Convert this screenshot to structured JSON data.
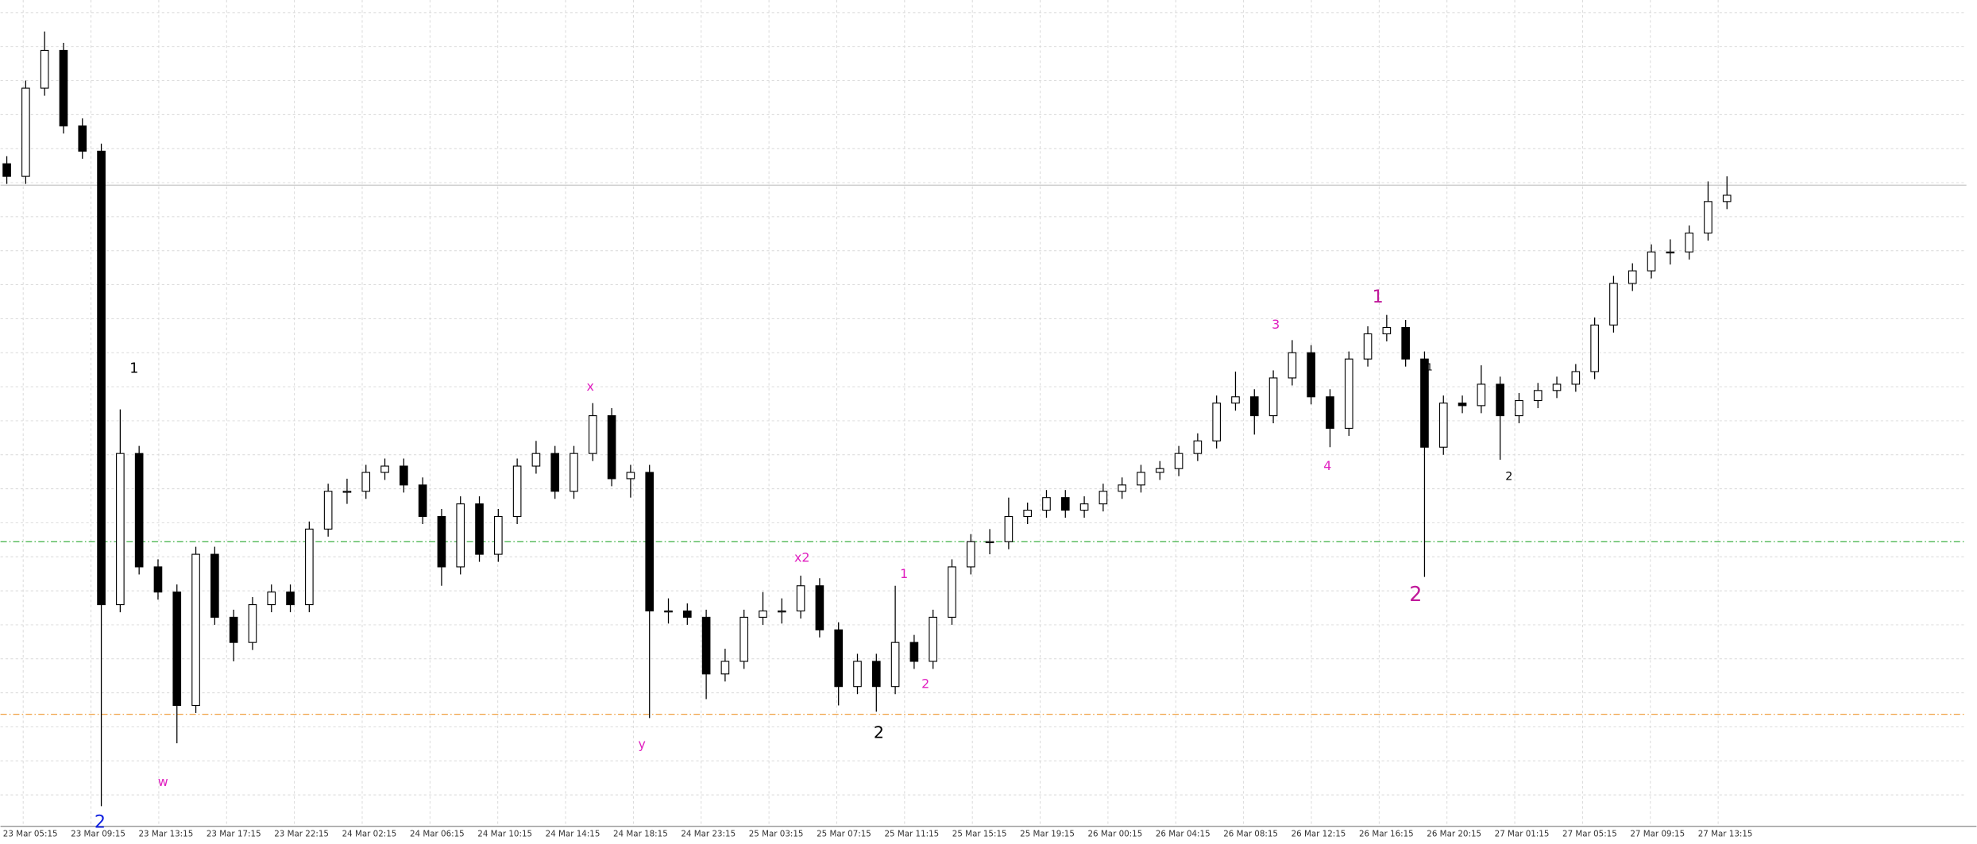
{
  "chart_data": {
    "type": "candlestick",
    "x_labels": [
      "23 Mar 05:15",
      "23 Mar 09:15",
      "23 Mar 13:15",
      "23 Mar 17:15",
      "23 Mar 22:15",
      "24 Mar 02:15",
      "24 Mar 06:15",
      "24 Mar 10:15",
      "24 Mar 14:15",
      "24 Mar 18:15",
      "24 Mar 23:15",
      "25 Mar 03:15",
      "25 Mar 07:15",
      "25 Mar 11:15",
      "25 Mar 15:15",
      "25 Mar 19:15",
      "26 Mar 00:15",
      "26 Mar 04:15",
      "26 Mar 08:15",
      "26 Mar 12:15",
      "26 Mar 16:15",
      "26 Mar 20:15",
      "27 Mar 01:15",
      "27 Mar 05:15",
      "27 Mar 09:15",
      "27 Mar 13:15"
    ],
    "open": [
      525,
      515,
      585,
      615,
      555,
      535,
      175,
      295,
      205,
      185,
      95,
      215,
      165,
      145,
      175,
      185,
      175,
      235,
      265,
      265,
      280,
      285,
      270,
      245,
      205,
      255,
      215,
      245,
      285,
      295,
      265,
      295,
      325,
      275,
      280,
      170,
      170,
      165,
      120,
      130,
      165,
      170,
      170,
      190,
      155,
      110,
      130,
      110,
      145,
      130,
      165,
      205,
      225,
      225,
      245,
      250,
      260,
      250,
      255,
      265,
      270,
      280,
      283,
      295,
      305,
      335,
      340,
      325,
      355,
      375,
      340,
      315,
      370,
      390,
      395,
      370,
      300,
      335,
      333,
      350,
      325,
      337,
      345,
      350,
      360,
      397,
      430,
      440,
      455,
      455,
      470,
      495
    ],
    "high": [
      531,
      591,
      630,
      621,
      561,
      541,
      330,
      301,
      211,
      191,
      221,
      221,
      171,
      181,
      191,
      191,
      241,
      271,
      275,
      286,
      291,
      291,
      276,
      251,
      261,
      261,
      251,
      291,
      305,
      301,
      301,
      335,
      331,
      286,
      286,
      180,
      176,
      171,
      140,
      171,
      185,
      180,
      198,
      196,
      161,
      136,
      136,
      190,
      151,
      171,
      211,
      231,
      235,
      260,
      256,
      266,
      266,
      261,
      271,
      276,
      286,
      289,
      301,
      311,
      341,
      360,
      346,
      361,
      385,
      381,
      346,
      376,
      396,
      405,
      401,
      376,
      341,
      341,
      365,
      356,
      343,
      351,
      356,
      366,
      403,
      436,
      446,
      461,
      465,
      476,
      511,
      515
    ],
    "low": [
      509,
      509,
      579,
      549,
      529,
      15,
      169,
      199,
      179,
      65,
      89,
      159,
      130,
      139,
      169,
      169,
      169,
      229,
      255,
      259,
      274,
      264,
      239,
      190,
      199,
      209,
      209,
      239,
      279,
      259,
      259,
      289,
      269,
      260,
      85,
      160,
      159,
      100,
      114,
      124,
      159,
      160,
      164,
      149,
      95,
      104,
      90,
      104,
      124,
      124,
      159,
      199,
      215,
      219,
      239,
      244,
      244,
      244,
      249,
      259,
      264,
      274,
      277,
      289,
      299,
      329,
      310,
      319,
      349,
      334,
      300,
      309,
      364,
      384,
      364,
      197,
      294,
      327,
      327,
      290,
      319,
      331,
      339,
      344,
      354,
      391,
      424,
      434,
      445,
      449,
      464,
      489
    ],
    "close": [
      515,
      585,
      615,
      555,
      535,
      175,
      295,
      205,
      185,
      95,
      215,
      165,
      145,
      175,
      185,
      175,
      235,
      265,
      265,
      280,
      285,
      270,
      245,
      205,
      255,
      215,
      245,
      285,
      295,
      265,
      295,
      325,
      275,
      280,
      170,
      170,
      165,
      120,
      130,
      165,
      170,
      170,
      190,
      155,
      110,
      130,
      110,
      145,
      130,
      165,
      205,
      225,
      225,
      245,
      250,
      260,
      250,
      255,
      265,
      270,
      280,
      283,
      295,
      305,
      335,
      340,
      325,
      355,
      375,
      340,
      315,
      370,
      390,
      395,
      370,
      300,
      335,
      333,
      350,
      325,
      337,
      345,
      350,
      360,
      397,
      430,
      440,
      455,
      455,
      470,
      495,
      500
    ],
    "ylim": [
      0,
      655
    ],
    "annotations": [
      "2",
      "1",
      "w",
      "x",
      "y",
      "x2",
      "1",
      "2",
      "2",
      "3",
      "4",
      "1",
      "2",
      "1",
      "2"
    ]
  }
}
